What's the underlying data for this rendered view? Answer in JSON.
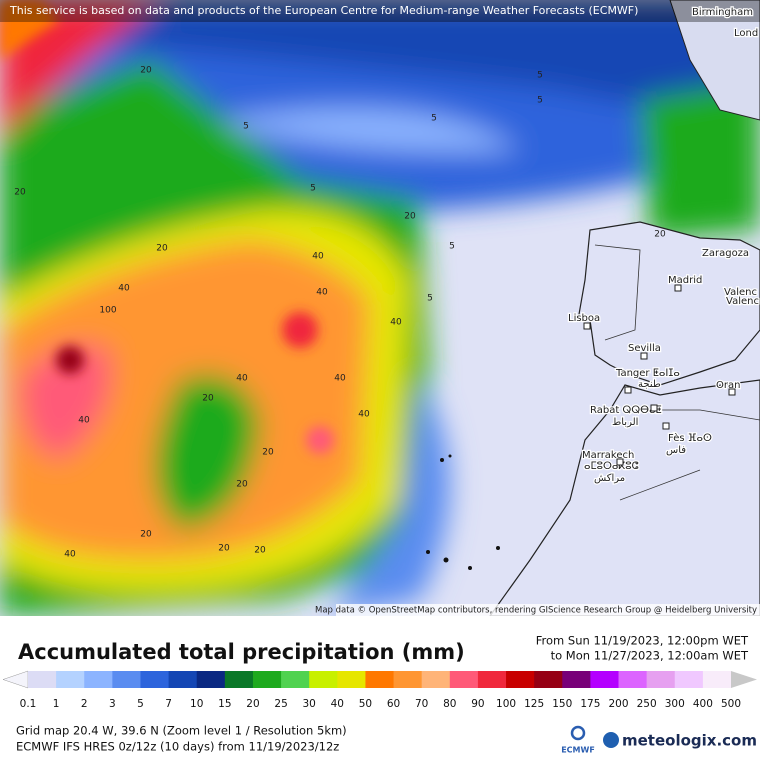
{
  "header": {
    "notice": "This service is based on data and products of the European Centre for Medium-range Weather Forecasts (ECMWF)"
  },
  "cities": [
    "Birmingham",
    "Lond",
    "Zaragoza",
    "Madrid",
    "Valenc",
    "Valenc",
    "Lisboa",
    "Sevilla",
    "Tanger ⵟⴰⵏⵊⴰ",
    "طنجة",
    "Oran",
    "Rabat ⵕⵕⴱⴰⵟ",
    "الرباط",
    "Fès ⴼⴰⵙ",
    "فاس",
    "Marrakech",
    "ⴰⵎⵓⵔⴰⴽⵓⵛ",
    "مراكش"
  ],
  "contour_labels": [
    "20",
    "20",
    "5",
    "5",
    "5",
    "5",
    "5",
    "20",
    "40",
    "20",
    "40",
    "100",
    "40",
    "40",
    "20",
    "40",
    "40",
    "20",
    "20",
    "5",
    "40",
    "20",
    "20",
    "40",
    "20",
    "40",
    "5",
    "20"
  ],
  "attribution": "Map data © OpenStreetMap contributors, rendering GIScience Research Group @ Heidelberg University",
  "title": "Accumulated total precipitation (mm)",
  "period": {
    "from": "From Sun 11/19/2023, 12:00pm WET",
    "to": "to Mon 11/27/2023, 12:00am WET"
  },
  "legend": {
    "items": [
      {
        "value": 0.1,
        "color": "#dcdcf5"
      },
      {
        "value": 1,
        "color": "#b4d2ff"
      },
      {
        "value": 2,
        "color": "#8cb4ff"
      },
      {
        "value": 3,
        "color": "#5a8cf0"
      },
      {
        "value": 5,
        "color": "#2d64dc"
      },
      {
        "value": 7,
        "color": "#1446b4"
      },
      {
        "value": 10,
        "color": "#0a2882"
      },
      {
        "value": 15,
        "color": "#0a7828"
      },
      {
        "value": 20,
        "color": "#1eaa1e"
      },
      {
        "value": 25,
        "color": "#50d250"
      },
      {
        "value": 30,
        "color": "#c8f000"
      },
      {
        "value": 40,
        "color": "#e6e600"
      },
      {
        "value": 50,
        "color": "#ff7800"
      },
      {
        "value": 60,
        "color": "#ff9632"
      },
      {
        "value": 70,
        "color": "#ffb478"
      },
      {
        "value": 80,
        "color": "#ff5a78"
      },
      {
        "value": 90,
        "color": "#f0283c"
      },
      {
        "value": 100,
        "color": "#c80000"
      },
      {
        "value": 125,
        "color": "#960014"
      },
      {
        "value": 150,
        "color": "#780078"
      },
      {
        "value": 175,
        "color": "#b400ff"
      },
      {
        "value": 200,
        "color": "#dc64ff"
      },
      {
        "value": 250,
        "color": "#e6a0f0"
      },
      {
        "value": 300,
        "color": "#f0c8ff"
      },
      {
        "value": 400,
        "color": "#f8ecfa"
      },
      {
        "value": 500,
        "color": "#c8c8c8"
      }
    ]
  },
  "footer": {
    "grid": "Grid map 20.4 W, 39.6 N (Zoom level 1 / Resolution 5km)",
    "model": "ECMWF IFS HRES 0z/12z (10 days)  from  11/19/2023/12z",
    "ecmwf": "ECMWF",
    "brand": "meteologix.com"
  }
}
